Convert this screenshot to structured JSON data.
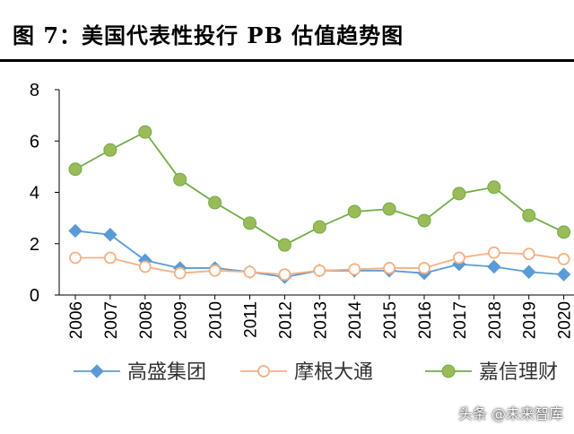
{
  "title": "图 7：美国代表性投行 PB 估值趋势图",
  "watermark": "头条 @未来智库",
  "chart_data": {
    "type": "line",
    "title": "",
    "xlabel": "",
    "ylabel": "",
    "ylim": [
      0,
      8
    ],
    "yticks": [
      0,
      2,
      4,
      6,
      8
    ],
    "grid": false,
    "legend": "bottom",
    "categories": [
      "2006",
      "2007",
      "2008",
      "2009",
      "2010",
      "2011",
      "2012",
      "2013",
      "2014",
      "2015",
      "2016",
      "2017",
      "2018",
      "2019",
      "2020"
    ],
    "series": [
      {
        "name": "高盛集团",
        "marker": "diamond",
        "color": "#5b9bd5",
        "fill": "#5b9bd5",
        "values": [
          2.5,
          2.35,
          1.35,
          1.05,
          1.05,
          0.9,
          0.7,
          0.95,
          0.95,
          0.95,
          0.85,
          1.2,
          1.1,
          0.9,
          0.8
        ]
      },
      {
        "name": "摩根大通",
        "marker": "circle-open",
        "color": "#f4b183",
        "fill": "#ffffff",
        "values": [
          1.45,
          1.45,
          1.1,
          0.85,
          0.95,
          0.9,
          0.8,
          0.95,
          1.0,
          1.05,
          1.05,
          1.45,
          1.65,
          1.6,
          1.4
        ]
      },
      {
        "name": "嘉信理财",
        "marker": "circle",
        "color": "#70ad47",
        "fill": "#9bbb59",
        "values": [
          4.9,
          5.65,
          6.35,
          4.5,
          3.6,
          2.8,
          1.95,
          2.65,
          3.25,
          3.35,
          2.9,
          3.95,
          4.2,
          3.1,
          2.45
        ]
      }
    ]
  }
}
